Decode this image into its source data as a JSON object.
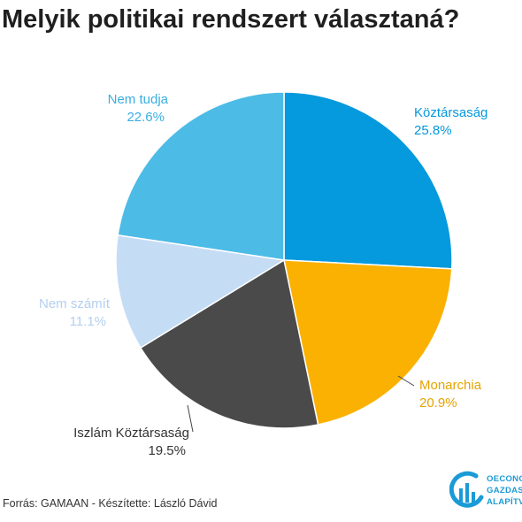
{
  "title": "Melyik politikai rendszert választaná?",
  "source": "Forrás: GAMAAN - Készítette: László Dávid",
  "logo": {
    "line1": "OECONOS",
    "line2": "GAZDASÁ",
    "line3": "ALAPÍTVÁ",
    "accent": "#1b9bd6"
  },
  "chart_data": {
    "type": "pie",
    "title": "Melyik politikai rendszert választaná?",
    "slices": [
      {
        "label": "Köztársaság",
        "value": 25.8,
        "value_label": "25.8%",
        "color": "#0599dd",
        "label_color": "#0599dd"
      },
      {
        "label": "Monarchia",
        "value": 20.9,
        "value_label": "20.9%",
        "color": "#fbb102",
        "label_color": "#e6a300"
      },
      {
        "label": "Iszlám Köztársaság",
        "value": 19.5,
        "value_label": "19.5%",
        "color": "#4a4a4a",
        "label_color": "#333333"
      },
      {
        "label": "Nem számít",
        "value": 11.1,
        "value_label": "11.1%",
        "color": "#c5dcf5",
        "label_color": "#b3cfee"
      },
      {
        "label": "Nem tudja",
        "value": 22.6,
        "value_label": "22.6%",
        "color": "#4cbbe6",
        "label_color": "#3aaee0"
      }
    ]
  }
}
